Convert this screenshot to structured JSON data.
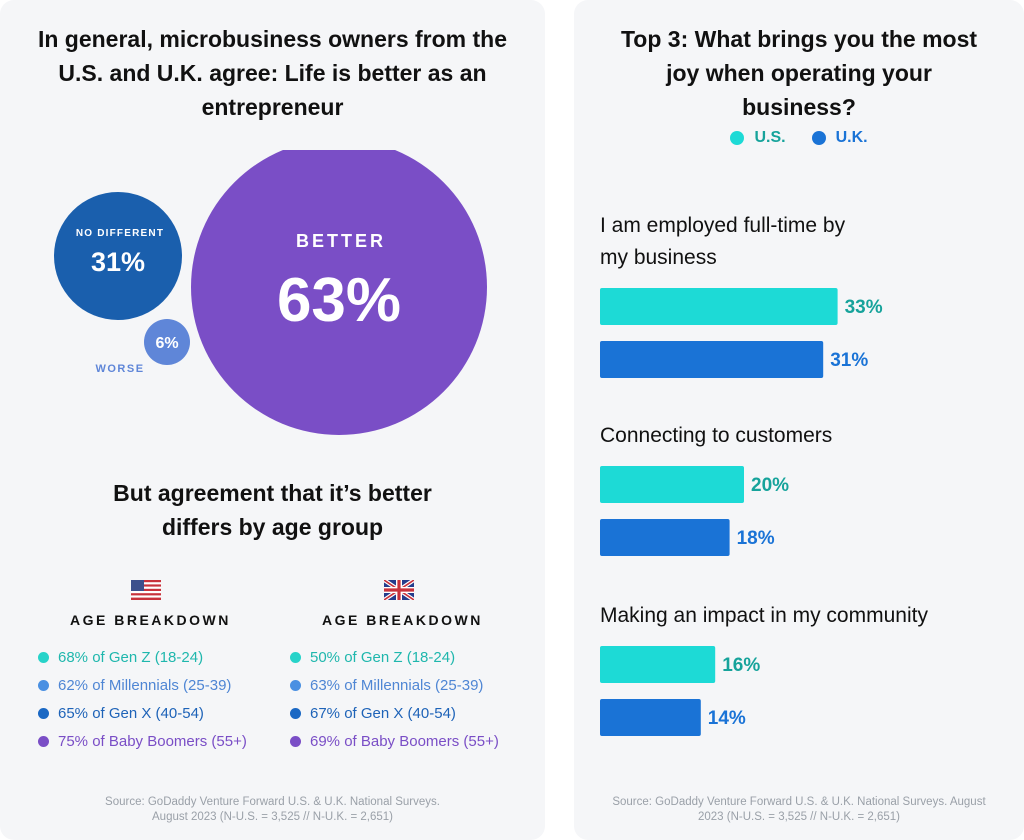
{
  "left_panel": {
    "title_lines": [
      "In general, microbusiness owners from the",
      "U.S. and U.K. agree: Life is better as an",
      "entrepreneur"
    ],
    "bubbles": [
      {
        "label": "NO DIFFERENT",
        "value": 31,
        "display": "31%",
        "color": "#1a5fad"
      },
      {
        "label": "BETTER",
        "value": 63,
        "display": "63%",
        "color": "#7a4ec6"
      },
      {
        "label": "WORSE",
        "value": 6,
        "display": "6%",
        "color": "#5f86d8"
      }
    ],
    "subtitle_lines": [
      "But agreement that it’s better",
      "differs by age group"
    ],
    "us": {
      "heading": "AGE BREAKDOWN",
      "items": [
        {
          "text": "68% of Gen Z (18-24)",
          "color": "#1fb7ad",
          "dot": "#27d3c9"
        },
        {
          "text": "62% of Millennials (25-39)",
          "color": "#4f86d4",
          "dot": "#4a90e2"
        },
        {
          "text": "65% of Gen X (40-54)",
          "color": "#1e63b8",
          "dot": "#1a68c4"
        },
        {
          "text": "75% of Baby Boomers (55+)",
          "color": "#7a4ec6",
          "dot": "#7a4ec6"
        }
      ]
    },
    "uk": {
      "heading": "AGE BREAKDOWN",
      "items": [
        {
          "text": "50% of Gen Z (18-24)",
          "color": "#1fb7ad",
          "dot": "#27d3c9"
        },
        {
          "text": "63% of Millennials (25-39)",
          "color": "#4f86d4",
          "dot": "#4a90e2"
        },
        {
          "text": "67% of Gen X (40-54)",
          "color": "#1e63b8",
          "dot": "#1a68c4"
        },
        {
          "text": "69% of Baby Boomers (55+)",
          "color": "#7a4ec6",
          "dot": "#7a4ec6"
        }
      ]
    },
    "source_lines": [
      "Source: GoDaddy Venture Forward U.S. & U.K. National Surveys.",
      "August 2023 (N-U.S. = 3,525 // N-U.K. = 2,651)"
    ]
  },
  "right_panel": {
    "title_lines": [
      "Top 3: What brings you the most",
      "joy when operating your",
      "business?"
    ],
    "source_lines": [
      "Source: GoDaddy Venture Forward U.S. & U.K. National Surveys. August",
      "2023 (N-U.S. = 3,525 // N-U.K. = 2,651)"
    ]
  },
  "colors": {
    "us": "#1ddad6",
    "uk": "#1a73d6",
    "us_label": "#16a39b",
    "uk_label": "#1a73d6"
  },
  "chart_data": [
    {
      "type": "bubble",
      "title": "In general, microbusiness owners from the U.S. and U.K. agree: Life is better as an entrepreneur",
      "categories": [
        "NO DIFFERENT",
        "BETTER",
        "WORSE"
      ],
      "values": [
        31,
        63,
        6
      ],
      "unit": "%"
    },
    {
      "type": "bar",
      "orientation": "horizontal",
      "title": "Top 3: What brings you the most joy when operating your business?",
      "categories": [
        "I am employed full-time by my business",
        "Connecting to customers",
        "Making an impact in my community"
      ],
      "category_lines": [
        [
          "I am employed full-time by",
          "my business"
        ],
        [
          "Connecting to customers"
        ],
        [
          "Making an impact in my community"
        ]
      ],
      "series": [
        {
          "name": "U.S.",
          "values": [
            33,
            20,
            16
          ]
        },
        {
          "name": "U.K.",
          "values": [
            31,
            18,
            14
          ]
        }
      ],
      "unit": "%",
      "legend": "top-center"
    }
  ]
}
